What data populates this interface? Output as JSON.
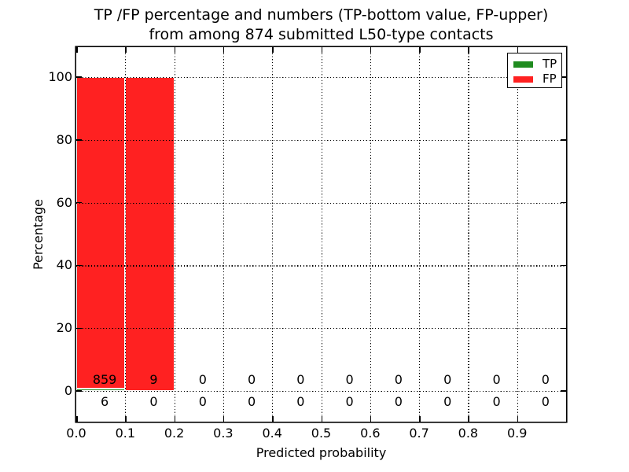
{
  "title": {
    "line1": "TP /FP percentage and numbers (TP-bottom value, FP-upper)",
    "line2": "from among 874 submitted L50-type contacts"
  },
  "axes": {
    "xlabel": "Predicted probability",
    "ylabel": "Percentage",
    "xtick_labels": [
      "0.0",
      "0.1",
      "0.2",
      "0.3",
      "0.4",
      "0.5",
      "0.6",
      "0.7",
      "0.8",
      "0.9"
    ],
    "ytick_labels": [
      "0",
      "20",
      "40",
      "60",
      "80",
      "100"
    ]
  },
  "legend": {
    "position": "upper right",
    "entries": [
      {
        "label": "TP",
        "color": "#1f8b1f"
      },
      {
        "label": "FP",
        "color": "#ff2121"
      }
    ]
  },
  "chart_data": {
    "type": "bar",
    "stacked": true,
    "title": "TP /FP percentage and numbers (TP-bottom value, FP-upper) from among 874 submitted L50-type contacts",
    "xlabel": "Predicted probability",
    "ylabel": "Percentage",
    "total_contacts": 874,
    "bin_width": 0.1,
    "bin_starts": [
      0.0,
      0.1,
      0.2,
      0.3,
      0.4,
      0.5,
      0.6,
      0.7,
      0.8,
      0.9
    ],
    "xticks": [
      0.0,
      0.1,
      0.2,
      0.3,
      0.4,
      0.5,
      0.6,
      0.7,
      0.8,
      0.9
    ],
    "yticks": [
      0,
      20,
      40,
      60,
      80,
      100
    ],
    "xlim": [
      0.0,
      1.0
    ],
    "ylim": [
      -10,
      110
    ],
    "grid": "dotted, both axes, drawn above bars",
    "bar_edge_color": "#ffffff",
    "series": [
      {
        "name": "TP",
        "color": "#1f8b1f",
        "counts": [
          6,
          0,
          0,
          0,
          0,
          0,
          0,
          0,
          0,
          0
        ],
        "percent": [
          0.69,
          0,
          0,
          0,
          0,
          0,
          0,
          0,
          0,
          0
        ]
      },
      {
        "name": "FP",
        "color": "#ff2121",
        "counts": [
          859,
          9,
          0,
          0,
          0,
          0,
          0,
          0,
          0,
          0
        ],
        "percent": [
          99.31,
          100,
          0,
          0,
          0,
          0,
          0,
          0,
          0,
          0
        ]
      }
    ],
    "annotation_note": "upper number row = FP counts, lower number row = TP counts"
  },
  "colors": {
    "background": "#ffffff",
    "text": "#000000",
    "grid": "#000000",
    "tp": "#1f8b1f",
    "fp": "#ff2121"
  }
}
